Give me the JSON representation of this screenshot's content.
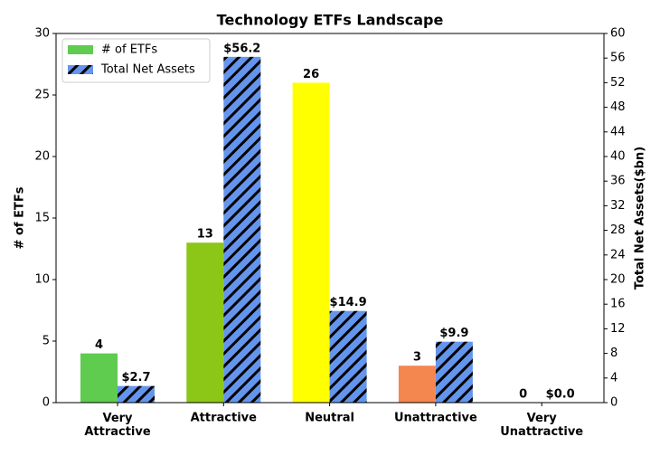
{
  "chart_data": {
    "type": "bar",
    "title": "Technology ETFs Landscape",
    "categories": [
      "Very\nAttractive",
      "Attractive",
      "Neutral",
      "Unattractive",
      "Very\nUnattractive"
    ],
    "y_label": "# of ETFs",
    "y2_label": "Total Net Assets($bn)",
    "series": [
      {
        "name": "# of ETFs",
        "color": "#5fcb4f",
        "colors": [
          "#5fcb4f",
          "#8cc617",
          "#ffff00",
          "#f4874f",
          "#e03c31"
        ],
        "values": [
          4,
          13,
          26,
          3,
          0
        ]
      },
      {
        "name": "Total Net Assets",
        "color": "#6495ed",
        "hatch": true,
        "axis": "y2",
        "values": [
          2.7,
          56.2,
          14.9,
          9.9,
          0.0
        ],
        "value_labels": [
          "$2.7",
          "$56.2",
          "$14.9",
          "$9.9",
          "$0.0"
        ]
      }
    ],
    "ylim": [
      0,
      30
    ],
    "yticks": [
      0,
      5,
      10,
      15,
      20,
      25,
      30
    ],
    "y2lim": [
      0,
      60
    ],
    "y2ticks": [
      0,
      4,
      8,
      12,
      16,
      20,
      24,
      28,
      32,
      36,
      40,
      44,
      48,
      52,
      56,
      60
    ],
    "legend": "upper-left"
  }
}
